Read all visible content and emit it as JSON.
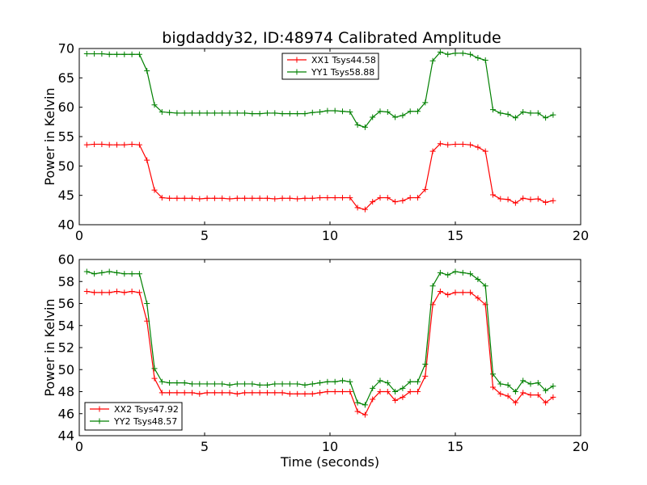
{
  "title": "bigdaddy32, ID:48974 Calibrated Amplitude",
  "chart_data": [
    {
      "type": "line",
      "title": "bigdaddy32, ID:48974 Calibrated Amplitude",
      "xlabel": "",
      "ylabel": "Power in Kelvin",
      "xlim": [
        0,
        20
      ],
      "ylim": [
        40,
        70
      ],
      "xticks": [
        0,
        5,
        10,
        15,
        20
      ],
      "yticks": [
        40,
        45,
        50,
        55,
        60,
        65,
        70
      ],
      "grid": false,
      "legend_position": "top-center",
      "x": [
        0.3,
        0.6,
        0.9,
        1.2,
        1.5,
        1.8,
        2.1,
        2.4,
        2.7,
        3.0,
        3.3,
        3.6,
        3.9,
        4.2,
        4.5,
        4.8,
        5.1,
        5.4,
        5.7,
        6.0,
        6.3,
        6.6,
        6.9,
        7.2,
        7.5,
        7.8,
        8.1,
        8.4,
        8.7,
        9.0,
        9.3,
        9.6,
        9.9,
        10.2,
        10.5,
        10.8,
        11.1,
        11.4,
        11.7,
        12.0,
        12.3,
        12.6,
        12.9,
        13.2,
        13.5,
        13.8,
        14.1,
        14.4,
        14.7,
        15.0,
        15.3,
        15.6,
        15.9,
        16.2,
        16.5,
        16.8,
        17.1,
        17.4,
        17.7,
        18.0,
        18.3,
        18.6,
        18.9
      ],
      "series": [
        {
          "name": "XX1 Tsys44.58",
          "color": "#ff0000",
          "values": [
            53.6,
            53.7,
            53.7,
            53.6,
            53.6,
            53.6,
            53.7,
            53.6,
            51.0,
            45.9,
            44.6,
            44.5,
            44.5,
            44.5,
            44.5,
            44.4,
            44.5,
            44.5,
            44.5,
            44.4,
            44.5,
            44.5,
            44.5,
            44.5,
            44.5,
            44.4,
            44.5,
            44.5,
            44.4,
            44.5,
            44.5,
            44.6,
            44.6,
            44.6,
            44.6,
            44.6,
            42.9,
            42.6,
            43.9,
            44.6,
            44.6,
            43.9,
            44.1,
            44.6,
            44.6,
            46.0,
            52.5,
            53.8,
            53.6,
            53.7,
            53.7,
            53.6,
            53.2,
            52.5,
            45.1,
            44.4,
            44.3,
            43.7,
            44.5,
            44.3,
            44.4,
            43.8,
            44.1
          ]
        },
        {
          "name": "YY1 Tsys58.88",
          "color": "#008000",
          "values": [
            69.1,
            69.1,
            69.1,
            69.0,
            69.0,
            69.0,
            69.0,
            69.0,
            66.2,
            60.4,
            59.2,
            59.1,
            59.0,
            59.0,
            59.0,
            59.0,
            59.0,
            59.0,
            59.0,
            59.0,
            59.0,
            59.0,
            58.9,
            58.9,
            59.0,
            59.0,
            58.9,
            58.9,
            58.9,
            58.9,
            59.1,
            59.2,
            59.4,
            59.4,
            59.3,
            59.2,
            57.0,
            56.6,
            58.3,
            59.3,
            59.2,
            58.3,
            58.6,
            59.3,
            59.3,
            60.8,
            67.9,
            69.4,
            69.0,
            69.2,
            69.2,
            69.0,
            68.4,
            68.0,
            59.6,
            59.0,
            58.8,
            58.2,
            59.2,
            59.0,
            59.0,
            58.2,
            58.7
          ]
        }
      ]
    },
    {
      "type": "line",
      "title": "",
      "xlabel": "Time (seconds)",
      "ylabel": "Power in Kelvin",
      "xlim": [
        0,
        20
      ],
      "ylim": [
        44,
        60
      ],
      "xticks": [
        0,
        5,
        10,
        15,
        20
      ],
      "yticks": [
        44,
        46,
        48,
        50,
        52,
        54,
        56,
        58,
        60
      ],
      "grid": false,
      "legend_position": "bottom-left",
      "x": [
        0.3,
        0.6,
        0.9,
        1.2,
        1.5,
        1.8,
        2.1,
        2.4,
        2.7,
        3.0,
        3.3,
        3.6,
        3.9,
        4.2,
        4.5,
        4.8,
        5.1,
        5.4,
        5.7,
        6.0,
        6.3,
        6.6,
        6.9,
        7.2,
        7.5,
        7.8,
        8.1,
        8.4,
        8.7,
        9.0,
        9.3,
        9.6,
        9.9,
        10.2,
        10.5,
        10.8,
        11.1,
        11.4,
        11.7,
        12.0,
        12.3,
        12.6,
        12.9,
        13.2,
        13.5,
        13.8,
        14.1,
        14.4,
        14.7,
        15.0,
        15.3,
        15.6,
        15.9,
        16.2,
        16.5,
        16.8,
        17.1,
        17.4,
        17.7,
        18.0,
        18.3,
        18.6,
        18.9
      ],
      "series": [
        {
          "name": "XX2 Tsys47.92",
          "color": "#ff0000",
          "values": [
            57.1,
            57.0,
            57.0,
            57.0,
            57.1,
            57.0,
            57.1,
            57.0,
            54.4,
            49.2,
            47.9,
            47.9,
            47.9,
            47.9,
            47.9,
            47.8,
            47.9,
            47.9,
            47.9,
            47.9,
            47.8,
            47.9,
            47.9,
            47.9,
            47.9,
            47.9,
            47.9,
            47.8,
            47.8,
            47.8,
            47.8,
            47.9,
            48.0,
            48.0,
            48.0,
            48.0,
            46.2,
            45.9,
            47.3,
            48.0,
            48.0,
            47.2,
            47.5,
            48.0,
            48.0,
            49.4,
            55.9,
            57.1,
            56.8,
            57.0,
            57.0,
            57.0,
            56.5,
            55.9,
            48.4,
            47.8,
            47.6,
            47.0,
            47.9,
            47.7,
            47.7,
            47.0,
            47.5
          ]
        },
        {
          "name": "YY2 Tsys48.57",
          "color": "#008000",
          "values": [
            58.9,
            58.7,
            58.8,
            58.9,
            58.8,
            58.7,
            58.7,
            58.7,
            56.0,
            50.1,
            48.9,
            48.8,
            48.8,
            48.8,
            48.7,
            48.7,
            48.7,
            48.7,
            48.7,
            48.6,
            48.7,
            48.7,
            48.7,
            48.6,
            48.6,
            48.7,
            48.7,
            48.7,
            48.7,
            48.6,
            48.7,
            48.8,
            48.9,
            48.9,
            49.0,
            48.9,
            47.0,
            46.8,
            48.3,
            49.0,
            48.8,
            48.0,
            48.3,
            48.9,
            48.9,
            50.5,
            57.6,
            58.8,
            58.6,
            58.9,
            58.8,
            58.7,
            58.2,
            57.6,
            49.6,
            48.7,
            48.6,
            48.0,
            49.0,
            48.7,
            48.8,
            48.1,
            48.5
          ]
        }
      ]
    }
  ]
}
